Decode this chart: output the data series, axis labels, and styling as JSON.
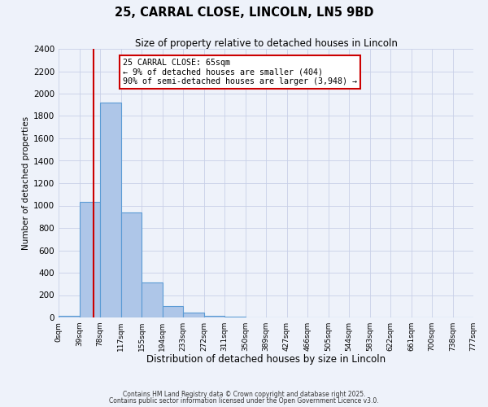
{
  "title_line1": "25, CARRAL CLOSE, LINCOLN, LN5 9BD",
  "title_line2": "Size of property relative to detached houses in Lincoln",
  "xlabel": "Distribution of detached houses by size in Lincoln",
  "ylabel": "Number of detached properties",
  "bin_labels": [
    "0sqm",
    "39sqm",
    "78sqm",
    "117sqm",
    "155sqm",
    "194sqm",
    "233sqm",
    "272sqm",
    "311sqm",
    "350sqm",
    "389sqm",
    "427sqm",
    "466sqm",
    "505sqm",
    "544sqm",
    "583sqm",
    "622sqm",
    "661sqm",
    "700sqm",
    "738sqm",
    "777sqm"
  ],
  "bar_heights": [
    15,
    1030,
    1920,
    935,
    315,
    100,
    45,
    18,
    5,
    0,
    0,
    0,
    0,
    0,
    0,
    0,
    0,
    0,
    0,
    0
  ],
  "bar_color": "#aec6e8",
  "bar_edge_color": "#5b9bd5",
  "ylim": [
    0,
    2400
  ],
  "yticks": [
    0,
    200,
    400,
    600,
    800,
    1000,
    1200,
    1400,
    1600,
    1800,
    2000,
    2200,
    2400
  ],
  "vline_x": 65,
  "vline_color": "#cc0000",
  "annotation_title": "25 CARRAL CLOSE: 65sqm",
  "annotation_line1": "← 9% of detached houses are smaller (404)",
  "annotation_line2": "90% of semi-detached houses are larger (3,948) →",
  "annotation_box_color": "#ffffff",
  "annotation_box_edge": "#cc0000",
  "footer_line1": "Contains HM Land Registry data © Crown copyright and database right 2025.",
  "footer_line2": "Contains public sector information licensed under the Open Government Licence v3.0.",
  "background_color": "#eef2fa",
  "grid_color": "#c8d0e8"
}
